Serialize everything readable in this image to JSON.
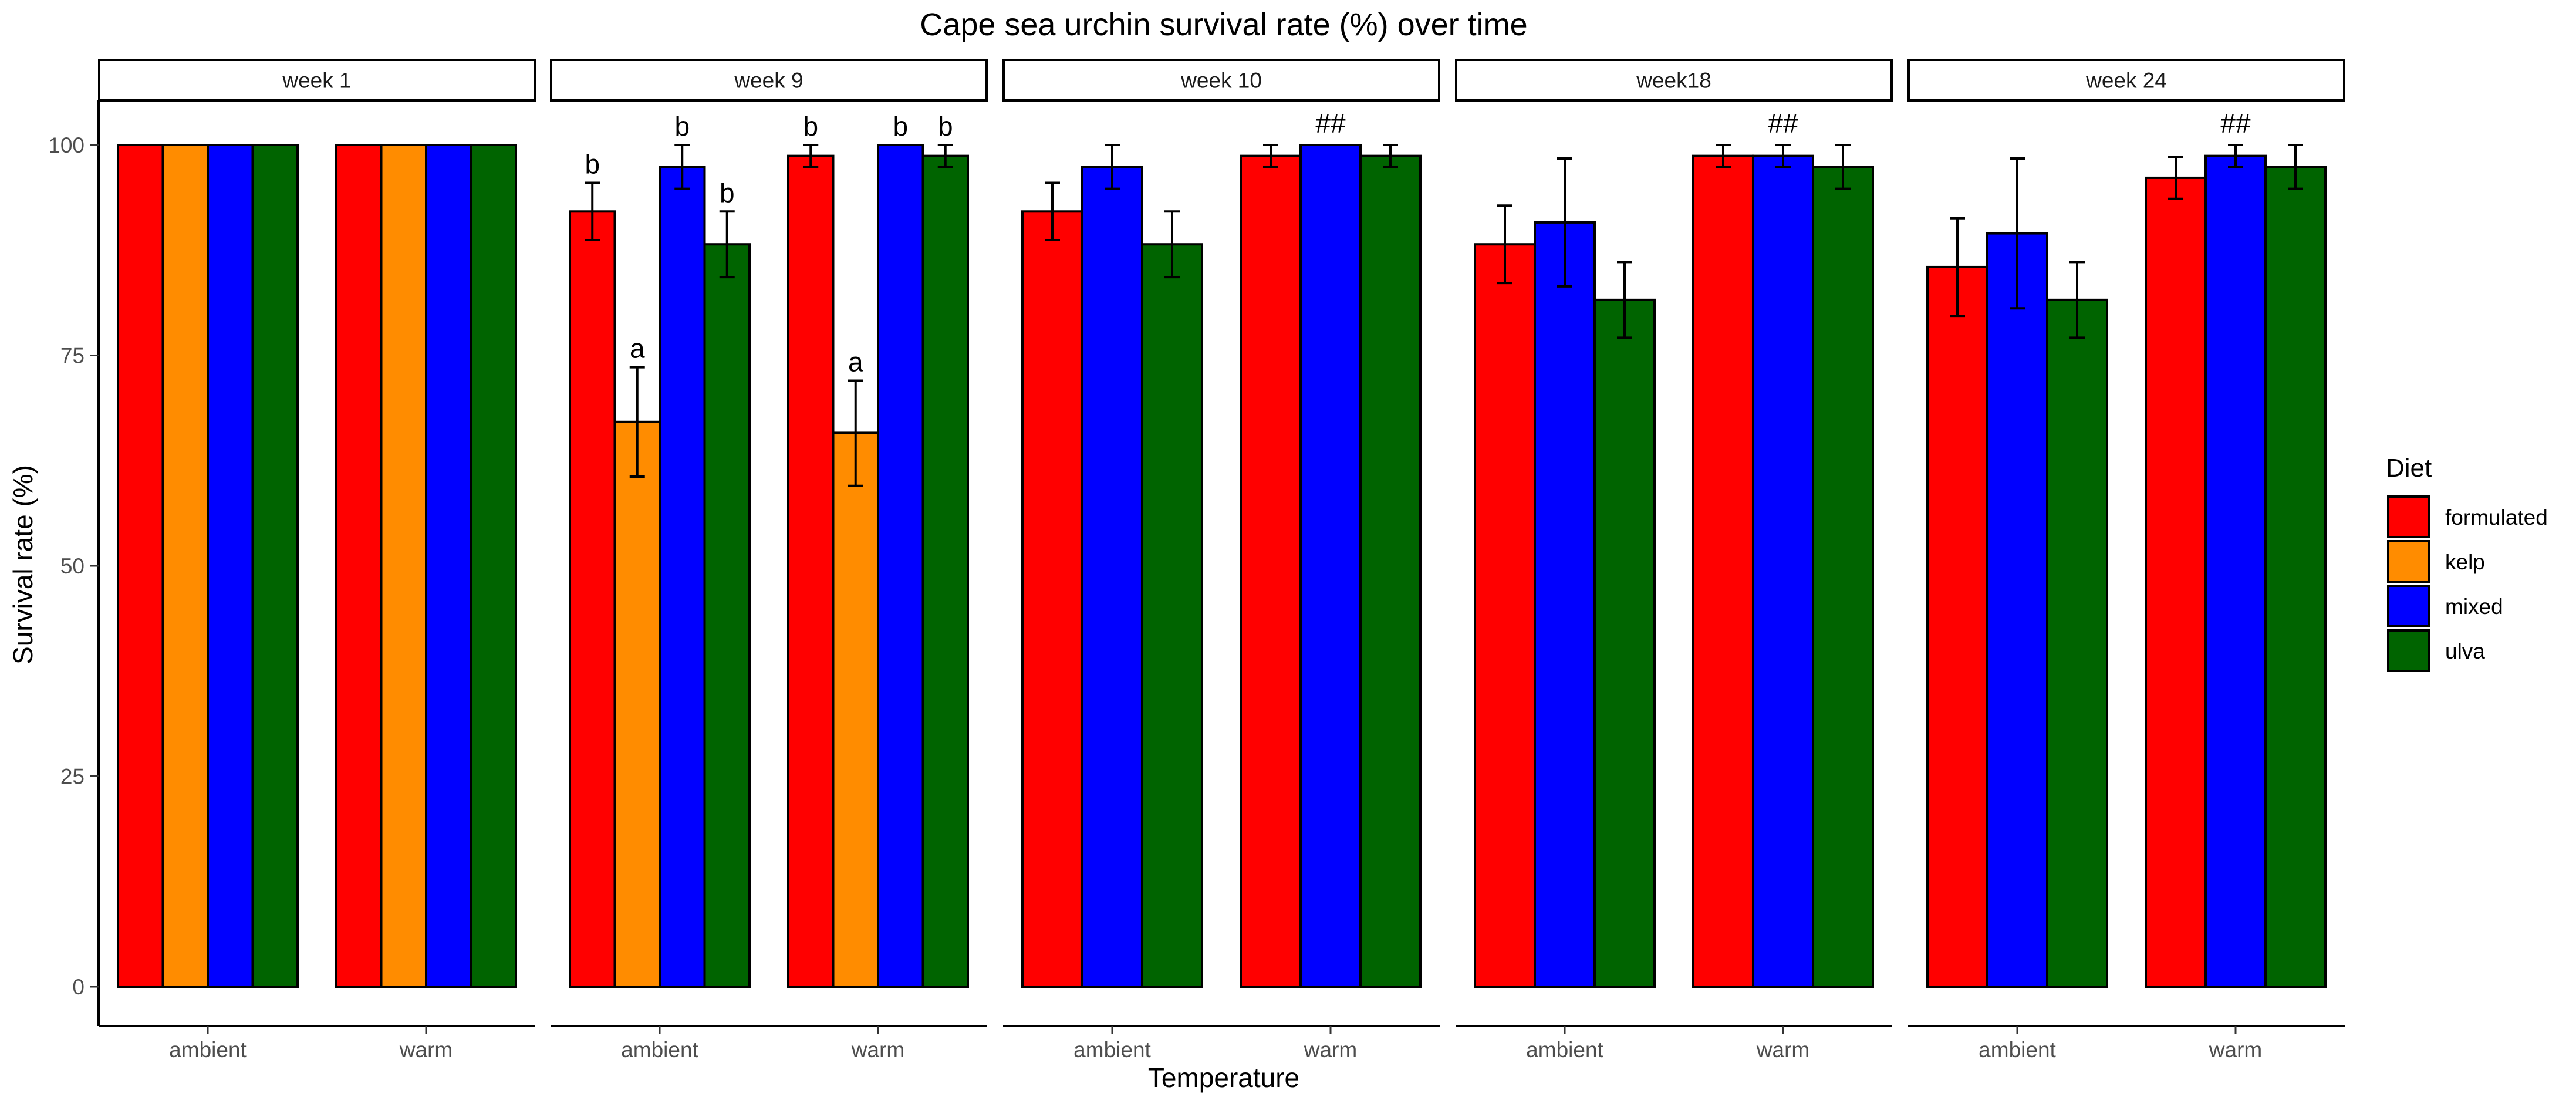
{
  "chart_data": {
    "type": "bar",
    "title": "Cape sea urchin survival rate (%) over time",
    "xlabel": "Temperature",
    "ylabel": "Survival rate (%)",
    "ylim": [
      0,
      105
    ],
    "yticks": [
      0,
      25,
      50,
      75,
      100
    ],
    "grid": false,
    "legend": {
      "title": "Diet",
      "position": "right",
      "items": [
        {
          "name": "formulated",
          "color": "#FF0000"
        },
        {
          "name": "kelp",
          "color": "#FF8C00"
        },
        {
          "name": "mixed",
          "color": "#0000FF"
        },
        {
          "name": "ulva",
          "color": "#006400"
        }
      ]
    },
    "panels": [
      {
        "label": "week 1",
        "groups": [
          {
            "category": "ambient",
            "bars": [
              {
                "diet": "formulated",
                "value": 100
              },
              {
                "diet": "kelp",
                "value": 100
              },
              {
                "diet": "mixed",
                "value": 100
              },
              {
                "diet": "ulva",
                "value": 100
              }
            ]
          },
          {
            "category": "warm",
            "bars": [
              {
                "diet": "formulated",
                "value": 100
              },
              {
                "diet": "kelp",
                "value": 100
              },
              {
                "diet": "mixed",
                "value": 100
              },
              {
                "diet": "ulva",
                "value": 100
              }
            ]
          }
        ]
      },
      {
        "label": "week 9",
        "groups": [
          {
            "category": "ambient",
            "bars": [
              {
                "diet": "formulated",
                "value": 92.1,
                "lo": 88.7,
                "hi": 95.5,
                "annotation": "b"
              },
              {
                "diet": "kelp",
                "value": 67.1,
                "lo": 60.6,
                "hi": 73.6,
                "annotation": "a"
              },
              {
                "diet": "mixed",
                "value": 97.4,
                "lo": 94.8,
                "hi": 100,
                "annotation": "b"
              },
              {
                "diet": "ulva",
                "value": 88.2,
                "lo": 84.3,
                "hi": 92.1,
                "annotation": "b"
              }
            ]
          },
          {
            "category": "warm",
            "bars": [
              {
                "diet": "formulated",
                "value": 98.7,
                "lo": 97.4,
                "hi": 100,
                "annotation": "b"
              },
              {
                "diet": "kelp",
                "value": 65.8,
                "lo": 59.5,
                "hi": 72.0,
                "annotation": "a"
              },
              {
                "diet": "mixed",
                "value": 100,
                "annotation": "b"
              },
              {
                "diet": "ulva",
                "value": 98.7,
                "lo": 97.4,
                "hi": 100,
                "annotation": "b"
              }
            ]
          }
        ]
      },
      {
        "label": "week 10",
        "groups": [
          {
            "category": "ambient",
            "bars": [
              {
                "diet": "formulated",
                "value": 92.1,
                "lo": 88.7,
                "hi": 95.5
              },
              {
                "diet": "mixed",
                "value": 97.4,
                "lo": 94.8,
                "hi": 100
              },
              {
                "diet": "ulva",
                "value": 88.2,
                "lo": 84.3,
                "hi": 92.1
              }
            ]
          },
          {
            "category": "warm",
            "annotation": "##",
            "bars": [
              {
                "diet": "formulated",
                "value": 98.7,
                "lo": 97.4,
                "hi": 100
              },
              {
                "diet": "mixed",
                "value": 100
              },
              {
                "diet": "ulva",
                "value": 98.7,
                "lo": 97.4,
                "hi": 100
              }
            ]
          }
        ]
      },
      {
        "label": "week18",
        "groups": [
          {
            "category": "ambient",
            "bars": [
              {
                "diet": "formulated",
                "value": 88.2,
                "lo": 83.6,
                "hi": 92.8
              },
              {
                "diet": "mixed",
                "value": 90.8,
                "lo": 83.2,
                "hi": 98.4
              },
              {
                "diet": "ulva",
                "value": 81.6,
                "lo": 77.1,
                "hi": 86.1
              }
            ]
          },
          {
            "category": "warm",
            "annotation": "##",
            "bars": [
              {
                "diet": "formulated",
                "value": 98.7,
                "lo": 97.4,
                "hi": 100
              },
              {
                "diet": "mixed",
                "value": 98.7,
                "lo": 97.4,
                "hi": 100
              },
              {
                "diet": "ulva",
                "value": 97.4,
                "lo": 94.8,
                "hi": 100
              }
            ]
          }
        ]
      },
      {
        "label": "week 24",
        "groups": [
          {
            "category": "ambient",
            "bars": [
              {
                "diet": "formulated",
                "value": 85.5,
                "lo": 79.7,
                "hi": 91.3
              },
              {
                "diet": "mixed",
                "value": 89.5,
                "lo": 80.6,
                "hi": 98.4
              },
              {
                "diet": "ulva",
                "value": 81.6,
                "lo": 77.1,
                "hi": 86.1
              }
            ]
          },
          {
            "category": "warm",
            "annotation": "##",
            "bars": [
              {
                "diet": "formulated",
                "value": 96.1,
                "lo": 93.6,
                "hi": 98.6
              },
              {
                "diet": "mixed",
                "value": 98.7,
                "lo": 97.4,
                "hi": 100
              },
              {
                "diet": "ulva",
                "value": 97.4,
                "lo": 94.8,
                "hi": 100
              }
            ]
          }
        ]
      }
    ]
  }
}
